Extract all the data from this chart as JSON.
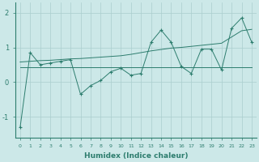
{
  "xlabel": "Humidex (Indice chaleur)",
  "x": [
    0,
    1,
    2,
    3,
    4,
    5,
    6,
    7,
    8,
    9,
    10,
    11,
    12,
    13,
    14,
    15,
    16,
    17,
    18,
    19,
    20,
    21,
    22,
    23
  ],
  "y_data": [
    -1.3,
    0.85,
    0.5,
    0.55,
    0.6,
    0.65,
    -0.35,
    -0.1,
    0.05,
    0.3,
    0.4,
    0.2,
    0.25,
    1.15,
    1.5,
    1.15,
    0.45,
    0.25,
    0.95,
    0.95,
    0.35,
    1.55,
    1.85,
    1.15
  ],
  "y_trend": [
    0.58,
    0.6,
    0.62,
    0.63,
    0.65,
    0.67,
    0.68,
    0.7,
    0.72,
    0.74,
    0.76,
    0.8,
    0.85,
    0.9,
    0.94,
    0.98,
    1.0,
    1.03,
    1.06,
    1.09,
    1.12,
    1.3,
    1.48,
    1.52
  ],
  "y_flat": [
    0.42,
    0.42,
    0.42,
    0.42,
    0.42,
    0.42,
    0.42,
    0.42,
    0.42,
    0.42,
    0.42,
    0.42,
    0.42,
    0.42,
    0.42,
    0.42,
    0.42,
    0.42,
    0.42,
    0.42,
    0.42,
    0.42,
    0.42,
    0.42
  ],
  "line_color": "#2d7d6e",
  "bg_color": "#cce8e8",
  "grid_color": "#aacece",
  "ylim": [
    -1.6,
    2.3
  ],
  "yticks": [
    -1,
    0,
    1,
    2
  ],
  "xlim": [
    -0.5,
    23.5
  ]
}
